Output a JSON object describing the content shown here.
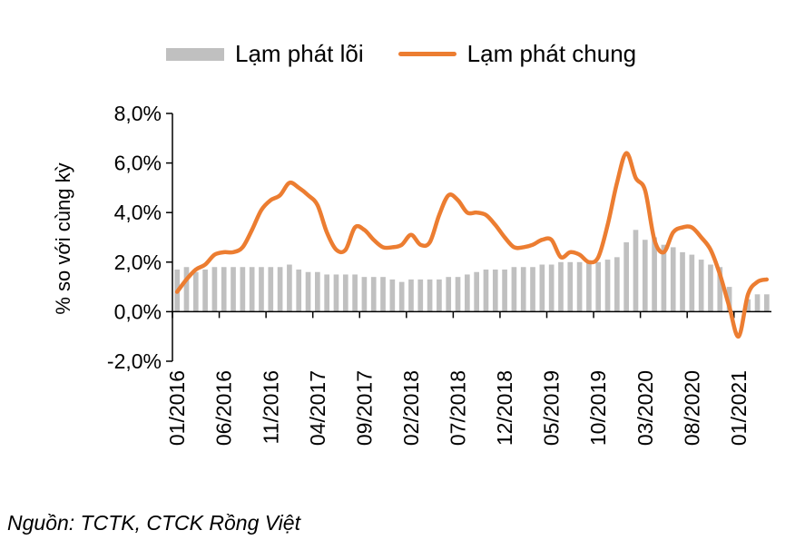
{
  "legend": {
    "core_label": "Lạm phát lõi",
    "headline_label": "Lạm phát chung"
  },
  "source": "Nguồn: TCTK, CTCK Rồng Việt",
  "colors": {
    "core": "#c0c0c0",
    "headline": "#ec7d31",
    "axis": "#000000"
  },
  "chart_data": {
    "type": "bar",
    "ylabel": "% so với cùng kỳ",
    "ylim": [
      -2,
      8
    ],
    "yticks": [
      "8,0%",
      "6,0%",
      "4,0%",
      "2,0%",
      "0,0%",
      "-2,0%"
    ],
    "ytick_values": [
      8,
      6,
      4,
      2,
      0,
      -2
    ],
    "x_ticks": [
      "01/2016",
      "06/2016",
      "11/2016",
      "04/2017",
      "09/2017",
      "02/2018",
      "07/2018",
      "12/2018",
      "05/2019",
      "10/2019",
      "03/2020",
      "08/2020",
      "01/2021"
    ],
    "x": [
      "01/2016",
      "02/2016",
      "03/2016",
      "04/2016",
      "05/2016",
      "06/2016",
      "07/2016",
      "08/2016",
      "09/2016",
      "10/2016",
      "11/2016",
      "12/2016",
      "01/2017",
      "02/2017",
      "03/2017",
      "04/2017",
      "05/2017",
      "06/2017",
      "07/2017",
      "08/2017",
      "09/2017",
      "10/2017",
      "11/2017",
      "12/2017",
      "01/2018",
      "02/2018",
      "03/2018",
      "04/2018",
      "05/2018",
      "06/2018",
      "07/2018",
      "08/2018",
      "09/2018",
      "10/2018",
      "11/2018",
      "12/2018",
      "01/2019",
      "02/2019",
      "03/2019",
      "04/2019",
      "05/2019",
      "06/2019",
      "07/2019",
      "08/2019",
      "09/2019",
      "10/2019",
      "11/2019",
      "12/2019",
      "01/2020",
      "02/2020",
      "03/2020",
      "04/2020",
      "05/2020",
      "06/2020",
      "07/2020",
      "08/2020",
      "09/2020",
      "10/2020",
      "11/2020",
      "12/2020",
      "01/2021",
      "02/2021",
      "03/2021",
      "04/2021"
    ],
    "series": [
      {
        "name": "Lạm phát lõi",
        "type": "bar",
        "values": [
          1.7,
          1.8,
          1.6,
          1.7,
          1.8,
          1.8,
          1.8,
          1.8,
          1.8,
          1.8,
          1.8,
          1.8,
          1.9,
          1.7,
          1.6,
          1.6,
          1.5,
          1.5,
          1.5,
          1.5,
          1.4,
          1.4,
          1.4,
          1.3,
          1.2,
          1.3,
          1.3,
          1.3,
          1.3,
          1.4,
          1.4,
          1.5,
          1.6,
          1.7,
          1.7,
          1.7,
          1.8,
          1.8,
          1.8,
          1.9,
          1.9,
          2.0,
          2.0,
          2.0,
          2.0,
          2.0,
          2.1,
          2.2,
          2.8,
          3.3,
          2.9,
          3.0,
          2.7,
          2.6,
          2.4,
          2.3,
          2.1,
          1.9,
          1.8,
          1.0,
          0.0,
          0.5,
          0.7,
          0.7
        ]
      },
      {
        "name": "Lạm phát chung",
        "type": "line",
        "values": [
          0.8,
          1.3,
          1.7,
          1.9,
          2.3,
          2.4,
          2.4,
          2.6,
          3.3,
          4.1,
          4.5,
          4.7,
          5.2,
          5.0,
          4.7,
          4.3,
          3.2,
          2.5,
          2.5,
          3.4,
          3.3,
          2.9,
          2.6,
          2.6,
          2.7,
          3.1,
          2.7,
          2.8,
          3.9,
          4.7,
          4.5,
          4.0,
          4.0,
          3.9,
          3.5,
          3.0,
          2.6,
          2.6,
          2.7,
          2.9,
          2.9,
          2.2,
          2.4,
          2.3,
          2.0,
          2.2,
          3.5,
          5.2,
          6.4,
          5.4,
          4.9,
          2.9,
          2.4,
          3.2,
          3.4,
          3.4,
          3.0,
          2.5,
          1.5,
          0.2,
          -1.0,
          0.7,
          1.2,
          1.3
        ]
      }
    ]
  }
}
